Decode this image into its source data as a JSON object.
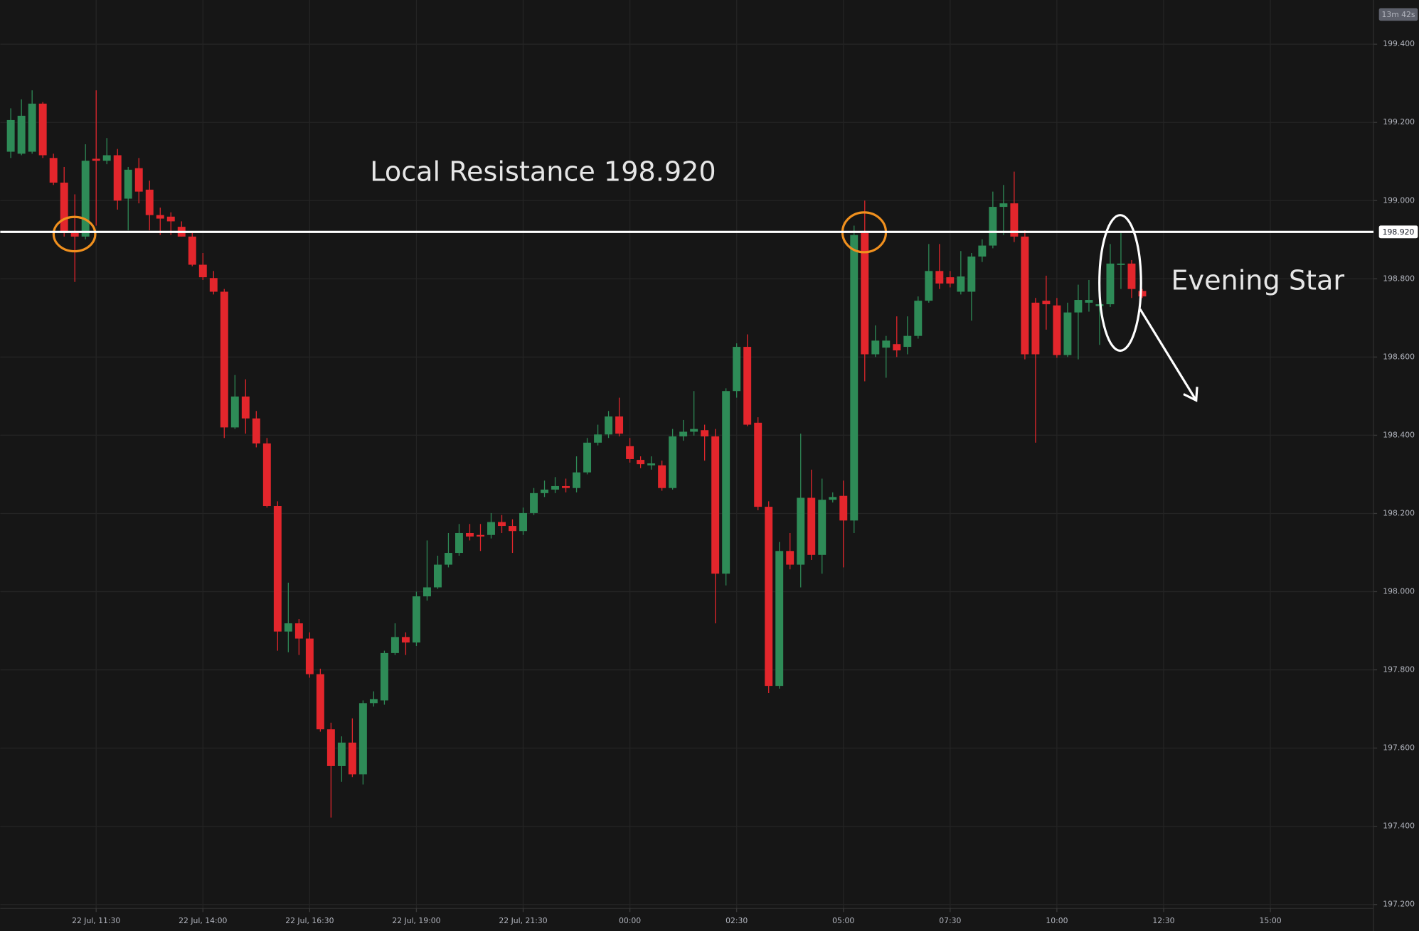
{
  "chart_data": {
    "type": "candlestick",
    "countdown": "13m 42s",
    "annotations": [
      {
        "text": "Local Resistance 198.920"
      },
      {
        "text": "Evening Star"
      }
    ],
    "resistance": {
      "value": 198.92,
      "label": "198.920",
      "color": "#ffffff"
    },
    "up_color": "#2e8b57",
    "down_color": "#e3262c",
    "grid": true,
    "xlim": [
      9.254,
      41.415
    ],
    "ylim": [
      197.19,
      199.513
    ],
    "xticks": [
      {
        "value": 11.5,
        "label": "22 Jul, 11:30"
      },
      {
        "value": 14,
        "label": "22 Jul, 14:00"
      },
      {
        "value": 16.5,
        "label": "22 Jul, 16:30"
      },
      {
        "value": 19,
        "label": "22 Jul, 19:00"
      },
      {
        "value": 21.5,
        "label": "22 Jul, 21:30"
      },
      {
        "value": 24,
        "label": "00:00"
      },
      {
        "value": 26.5,
        "label": "02:30"
      },
      {
        "value": 29,
        "label": "05:00"
      },
      {
        "value": 31.5,
        "label": "07:30"
      },
      {
        "value": 34,
        "label": "10:00"
      },
      {
        "value": 36.5,
        "label": "12:30"
      },
      {
        "value": 39,
        "label": "15:00"
      }
    ],
    "yticks": [
      {
        "value": 197.2,
        "label": "197.200"
      },
      {
        "value": 197.4,
        "label": "197.400"
      },
      {
        "value": 197.6,
        "label": "197.600"
      },
      {
        "value": 197.8,
        "label": "197.800"
      },
      {
        "value": 198,
        "label": "198.000"
      },
      {
        "value": 198.2,
        "label": "198.200"
      },
      {
        "value": 198.4,
        "label": "198.400"
      },
      {
        "value": 198.6,
        "label": "198.600"
      },
      {
        "value": 198.8,
        "label": "198.800"
      },
      {
        "value": 199,
        "label": "199.000"
      },
      {
        "value": 199.2,
        "label": "199.200"
      },
      {
        "value": 199.4,
        "label": "199.400"
      }
    ],
    "x": [
      9.5,
      9.75,
      10,
      10.25,
      10.5,
      10.75,
      11,
      11.25,
      11.5,
      11.75,
      12,
      12.25,
      12.5,
      12.75,
      13,
      13.25,
      13.5,
      13.75,
      14,
      14.25,
      14.5,
      14.75,
      15,
      15.25,
      15.5,
      15.75,
      16,
      16.25,
      16.5,
      16.75,
      17,
      17.25,
      17.5,
      17.75,
      18,
      18.25,
      18.5,
      18.75,
      19,
      19.25,
      19.5,
      19.75,
      20,
      20.25,
      20.5,
      20.75,
      21,
      21.25,
      21.5,
      21.75,
      22,
      22.25,
      22.5,
      22.75,
      23,
      23.25,
      23.5,
      23.75,
      24,
      24.25,
      24.5,
      24.75,
      25,
      25.25,
      25.5,
      25.75,
      26,
      26.25,
      26.5,
      26.75,
      27,
      27.25,
      27.5,
      27.75,
      28,
      28.25,
      28.5,
      28.75,
      29,
      29.25,
      29.5,
      29.75,
      30,
      30.25,
      30.5,
      30.75,
      31,
      31.25,
      31.5,
      31.75,
      32,
      32.25,
      32.5,
      32.75,
      33,
      33.25,
      33.5,
      33.75,
      34,
      34.25,
      34.5,
      34.75,
      35,
      35.25,
      35.5,
      35.75,
      36
    ],
    "open": [
      199.125,
      199.12,
      199.125,
      199.248,
      199.109,
      199.046,
      198.917,
      198.908,
      199.107,
      199.102,
      199.116,
      199.005,
      199.083,
      199.028,
      198.963,
      198.959,
      198.933,
      198.908,
      198.836,
      198.802,
      198.767,
      198.42,
      198.499,
      198.443,
      198.379,
      198.219,
      197.898,
      197.919,
      197.88,
      197.789,
      197.648,
      197.554,
      197.614,
      197.533,
      197.715,
      197.722,
      197.843,
      197.884,
      197.87,
      197.988,
      198.011,
      198.069,
      198.099,
      198.15,
      198.145,
      198.145,
      198.178,
      198.168,
      198.155,
      198.201,
      198.252,
      198.261,
      198.27,
      198.265,
      198.305,
      198.381,
      198.402,
      198.448,
      198.372,
      198.337,
      198.323,
      198.323,
      198.265,
      198.397,
      198.409,
      198.413,
      198.397,
      198.046,
      198.513,
      198.626,
      198.432,
      198.217,
      197.759,
      198.104,
      198.069,
      198.24,
      198.094,
      198.235,
      198.245,
      198.182,
      198.917,
      198.607,
      198.624,
      198.633,
      198.626,
      198.654,
      198.744,
      198.82,
      198.804,
      198.767,
      198.767,
      198.857,
      198.885,
      198.984,
      198.993,
      198.908,
      198.739,
      198.744,
      198.732,
      198.605,
      198.714,
      198.739,
      198.73,
      198.735,
      198.836,
      198.839,
      198.769
    ],
    "high": [
      199.236,
      199.259,
      199.282,
      199.252,
      199.12,
      199.086,
      199.016,
      199.144,
      199.282,
      199.16,
      199.132,
      199.086,
      199.109,
      199.051,
      198.982,
      198.97,
      198.947,
      198.917,
      198.866,
      198.82,
      198.774,
      198.554,
      198.543,
      198.462,
      198.393,
      198.231,
      198.023,
      197.93,
      197.896,
      197.803,
      197.665,
      197.63,
      197.676,
      197.722,
      197.745,
      197.849,
      197.919,
      197.896,
      198,
      198.131,
      198.092,
      198.15,
      198.173,
      198.173,
      198.173,
      198.201,
      198.196,
      198.185,
      198.215,
      198.265,
      198.284,
      198.293,
      198.289,
      198.346,
      198.393,
      198.427,
      198.462,
      198.496,
      198.393,
      198.346,
      198.346,
      198.335,
      198.416,
      198.439,
      198.513,
      198.427,
      198.416,
      198.52,
      198.635,
      198.658,
      198.446,
      198.231,
      198.127,
      198.15,
      198.404,
      198.312,
      198.289,
      198.254,
      198.284,
      198.936,
      199,
      198.681,
      198.654,
      198.704,
      198.704,
      198.755,
      198.889,
      198.889,
      198.82,
      198.871,
      198.866,
      198.901,
      199.023,
      199.04,
      199.074,
      198.924,
      198.751,
      198.808,
      198.751,
      198.739,
      198.785,
      198.797,
      198.82,
      198.889,
      198.917,
      198.848,
      198.774
    ],
    "low": [
      199.109,
      199.116,
      199.12,
      199.109,
      199.04,
      198.908,
      198.792,
      198.901,
      198.936,
      199.093,
      198.977,
      198.924,
      198.993,
      198.924,
      198.912,
      198.912,
      198.908,
      198.832,
      198.797,
      198.76,
      198.393,
      198.416,
      198.404,
      198.369,
      198.215,
      197.849,
      197.845,
      197.838,
      197.78,
      197.642,
      197.422,
      197.514,
      197.526,
      197.507,
      197.706,
      197.711,
      197.838,
      197.838,
      197.861,
      197.977,
      198.007,
      198.062,
      198.092,
      198.131,
      198.104,
      198.136,
      198.15,
      198.099,
      198.145,
      198.196,
      198.242,
      198.252,
      198.254,
      198.254,
      198.3,
      198.374,
      198.393,
      198.397,
      198.33,
      198.316,
      198.312,
      198.258,
      198.261,
      198.386,
      198.399,
      198.335,
      197.919,
      198.016,
      198.496,
      198.423,
      198.208,
      197.741,
      197.752,
      198.057,
      198.011,
      198.081,
      198.046,
      198.228,
      198.062,
      198.15,
      198.538,
      198.6,
      198.547,
      198.6,
      198.607,
      198.647,
      198.739,
      198.774,
      198.778,
      198.76,
      198.693,
      198.843,
      198.878,
      198.912,
      198.894,
      198.594,
      198.381,
      198.67,
      198.598,
      198.6,
      198.594,
      198.716,
      198.631,
      198.728,
      198.774,
      198.751,
      198.751
    ],
    "close": [
      199.206,
      199.217,
      199.248,
      199.116,
      199.046,
      198.917,
      198.908,
      199.102,
      199.102,
      199.116,
      199,
      199.079,
      199.023,
      198.963,
      198.954,
      198.947,
      198.908,
      198.836,
      198.804,
      198.767,
      198.42,
      198.499,
      198.443,
      198.379,
      198.219,
      197.898,
      197.919,
      197.88,
      197.789,
      197.648,
      197.554,
      197.614,
      197.533,
      197.715,
      197.725,
      197.843,
      197.884,
      197.87,
      197.988,
      198.011,
      198.069,
      198.099,
      198.15,
      198.141,
      198.141,
      198.178,
      198.168,
      198.155,
      198.201,
      198.252,
      198.261,
      198.27,
      198.265,
      198.305,
      198.381,
      198.402,
      198.448,
      198.404,
      198.339,
      198.326,
      198.328,
      198.265,
      198.397,
      198.409,
      198.416,
      198.397,
      198.046,
      198.513,
      198.626,
      198.427,
      198.217,
      197.759,
      198.104,
      198.069,
      198.24,
      198.094,
      198.235,
      198.242,
      198.182,
      198.912,
      198.607,
      198.642,
      198.642,
      198.617,
      198.654,
      198.744,
      198.82,
      198.788,
      198.788,
      198.806,
      198.857,
      198.885,
      198.984,
      198.993,
      198.908,
      198.607,
      198.607,
      198.735,
      198.605,
      198.714,
      198.746,
      198.746,
      198.735,
      198.839,
      198.839,
      198.774,
      198.755
    ]
  }
}
